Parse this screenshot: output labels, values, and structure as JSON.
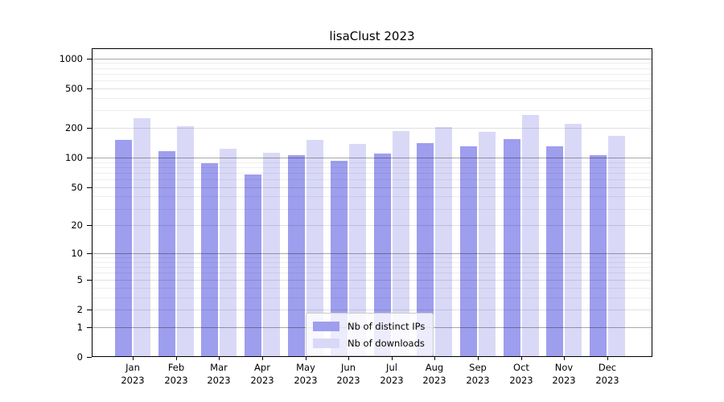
{
  "chart_data": {
    "type": "bar",
    "title": "lisaClust 2023",
    "categories": [
      "Jan 2023",
      "Feb 2023",
      "Mar 2023",
      "Apr 2023",
      "May 2023",
      "Jun 2023",
      "Jul 2023",
      "Aug 2023",
      "Sep 2023",
      "Oct 2023",
      "Nov 2023",
      "Dec 2023"
    ],
    "series": [
      {
        "name": "Nb of distinct IPs",
        "color": "#9e9eee",
        "values": [
          150,
          117,
          87,
          68,
          106,
          93,
          109,
          140,
          130,
          155,
          130,
          106
        ]
      },
      {
        "name": "Nb of downloads",
        "color": "#d9d9f7",
        "values": [
          250,
          208,
          122,
          112,
          150,
          139,
          186,
          205,
          184,
          270,
          222,
          167
        ]
      }
    ],
    "yscale": "log1p",
    "yticks": [
      0,
      1,
      2,
      5,
      10,
      20,
      50,
      100,
      200,
      500,
      1000
    ],
    "major_gridlines": [
      1,
      10,
      100,
      1000
    ],
    "mid_gridlines": [
      2,
      5,
      20,
      50,
      200,
      500
    ],
    "minor_gridlines": [
      3,
      4,
      6,
      7,
      8,
      9,
      30,
      40,
      60,
      70,
      80,
      90,
      300,
      400,
      600,
      700,
      800,
      900
    ],
    "ylim": [
      0,
      1270
    ],
    "xlabel": "",
    "ylabel": "",
    "grid": "horizontal",
    "legend_position": "inside-bottom-center",
    "background": "#ffffff"
  }
}
